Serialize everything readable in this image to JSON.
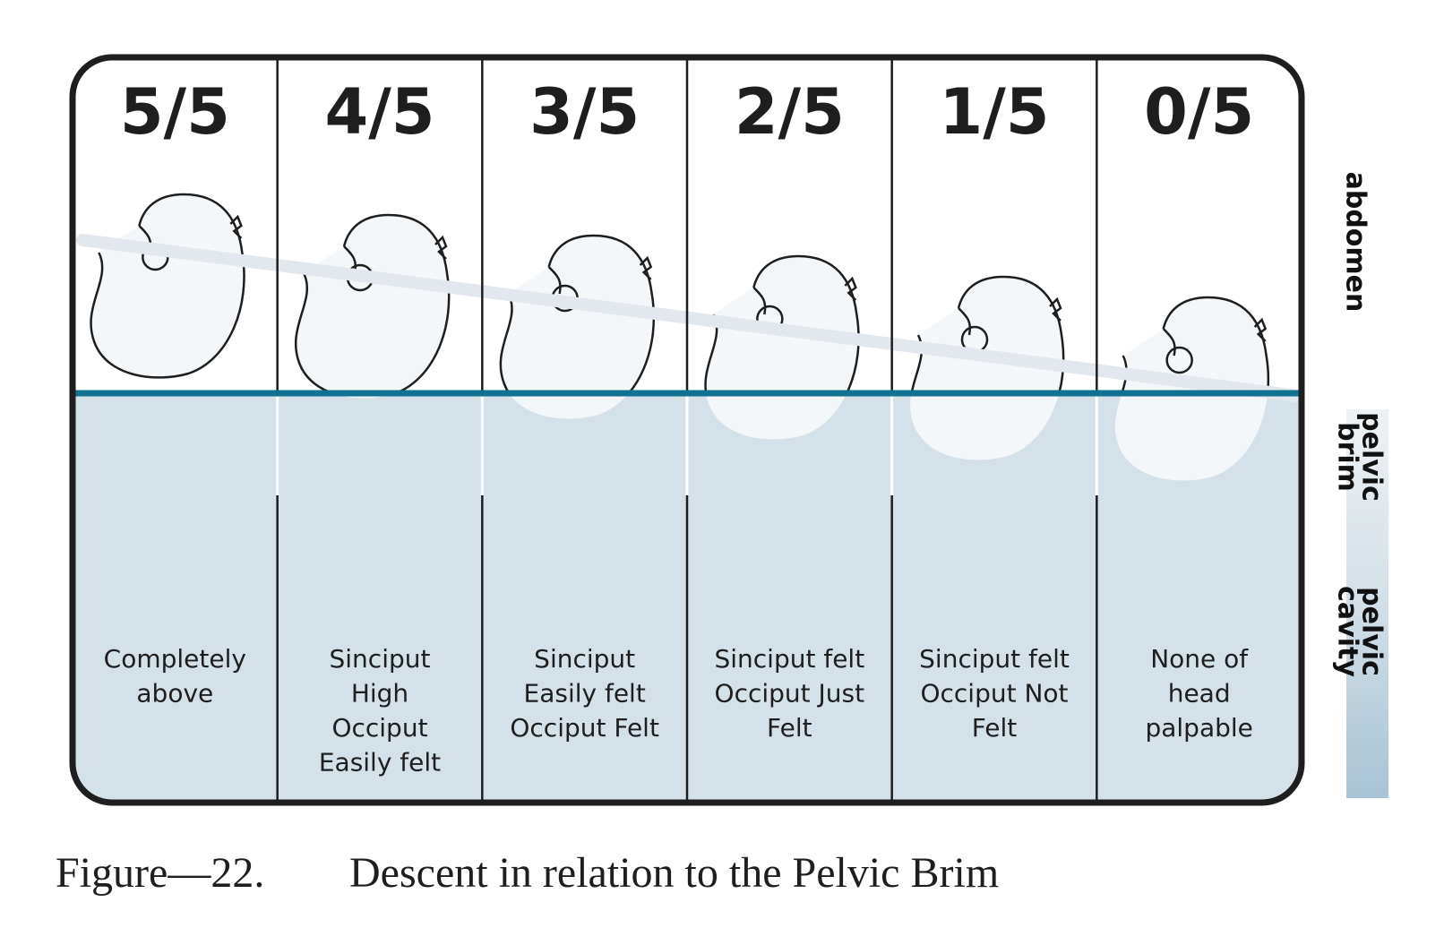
{
  "columns": [
    {
      "fraction": "5/5",
      "description": [
        "Completely",
        "above"
      ]
    },
    {
      "fraction": "4/5",
      "description": [
        "Sinciput",
        "High",
        "Occiput",
        "Easily felt"
      ]
    },
    {
      "fraction": "3/5",
      "description": [
        "Sinciput",
        "Easily felt",
        "Occiput Felt"
      ]
    },
    {
      "fraction": "2/5",
      "description": [
        "Sinciput felt",
        "Occiput Just",
        "Felt"
      ]
    },
    {
      "fraction": "1/5",
      "description": [
        "Sinciput felt",
        "Occiput Not",
        "Felt"
      ]
    },
    {
      "fraction": "0/5",
      "description": [
        "None of",
        "head",
        "palpable"
      ]
    }
  ],
  "side_labels": {
    "abdomen": "abdomen",
    "pelvic_brim": [
      "pelvic",
      "brim"
    ],
    "pelvic_cavity": [
      "pelvic",
      "cavity"
    ]
  },
  "caption": {
    "number": "Figure—22.",
    "text": "Descent in relation to the Pelvic Brim"
  }
}
